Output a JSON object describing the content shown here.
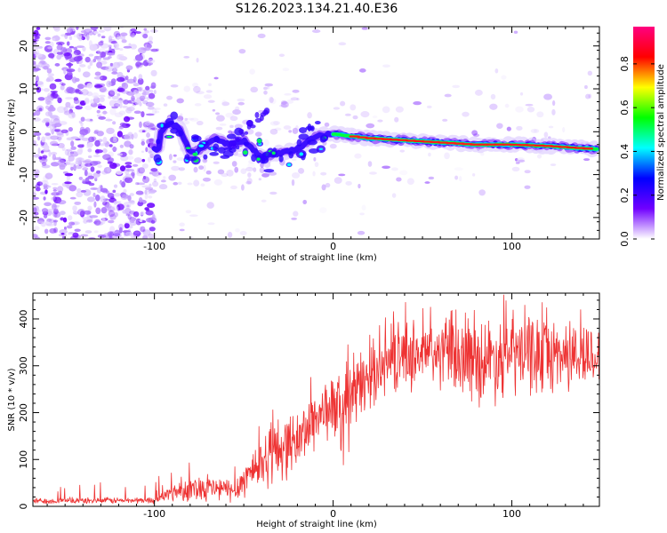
{
  "title": "S126.2023.134.21.40.E36",
  "chart_data": [
    {
      "type": "heatmap",
      "xlabel": "Height of straight line (km)",
      "ylabel": "Frequency (Hz)",
      "xlim": [
        -168,
        149
      ],
      "ylim": [
        -25,
        24.5
      ],
      "xticks": [
        "-100",
        "0",
        "100"
      ],
      "yticks": [
        "-20",
        "-10",
        "0",
        "10",
        "20"
      ],
      "colorbar": {
        "label": "Normalized spectral amplitude",
        "range": [
          0,
          0.97
        ],
        "ticks": [
          "0.0",
          "0.2",
          "0.4",
          "0.6",
          "0.8"
        ],
        "colormap": [
          "#ffffff",
          "#7000ff",
          "#0000ff",
          "#00ffff",
          "#00ff00",
          "#ffff00",
          "#ff0000",
          "#ff0080"
        ]
      },
      "ridge": [
        {
          "x": -97,
          "y": -0.5
        },
        {
          "x": -92,
          "y": 2
        },
        {
          "x": -86,
          "y": 1
        },
        {
          "x": -80,
          "y": -5
        },
        {
          "x": -74,
          "y": -4
        },
        {
          "x": -66,
          "y": -1.5
        },
        {
          "x": -58,
          "y": -3
        },
        {
          "x": -50,
          "y": -2
        },
        {
          "x": -40,
          "y": -6
        },
        {
          "x": -30,
          "y": -5
        },
        {
          "x": -20,
          "y": -4
        },
        {
          "x": -10,
          "y": -1
        },
        {
          "x": 0,
          "y": -0.5
        },
        {
          "x": 10,
          "y": -1
        },
        {
          "x": 20,
          "y": -1.5
        },
        {
          "x": 40,
          "y": -2
        },
        {
          "x": 60,
          "y": -2.5
        },
        {
          "x": 80,
          "y": -3
        },
        {
          "x": 100,
          "y": -3
        },
        {
          "x": 120,
          "y": -3.3
        },
        {
          "x": 145,
          "y": -4
        }
      ]
    },
    {
      "type": "line",
      "xlabel": "Height of straight line (km)",
      "ylabel": "SNR (10 * v/v)",
      "xlim": [
        -168,
        149
      ],
      "ylim": [
        0,
        455
      ],
      "xticks": [
        "-100",
        "0",
        "100"
      ],
      "yticks": [
        "0",
        "100",
        "200",
        "300",
        "400"
      ],
      "color": "#ee3333",
      "envelope": [
        {
          "x": -168,
          "low": 5,
          "high": 18
        },
        {
          "x": -100,
          "low": 6,
          "high": 20
        },
        {
          "x": -90,
          "low": 10,
          "high": 50
        },
        {
          "x": -75,
          "low": 12,
          "high": 70
        },
        {
          "x": -55,
          "low": 8,
          "high": 60
        },
        {
          "x": -45,
          "low": 30,
          "high": 130
        },
        {
          "x": -30,
          "low": 50,
          "high": 200
        },
        {
          "x": -20,
          "low": 80,
          "high": 200
        },
        {
          "x": -10,
          "low": 120,
          "high": 260
        },
        {
          "x": 0,
          "low": 150,
          "high": 280
        },
        {
          "x": 5,
          "low": 80,
          "high": 300
        },
        {
          "x": 15,
          "low": 180,
          "high": 330
        },
        {
          "x": 25,
          "low": 230,
          "high": 360
        },
        {
          "x": 40,
          "low": 250,
          "high": 400
        },
        {
          "x": 60,
          "low": 250,
          "high": 400
        },
        {
          "x": 80,
          "low": 220,
          "high": 400
        },
        {
          "x": 100,
          "low": 230,
          "high": 420
        },
        {
          "x": 120,
          "low": 240,
          "high": 410
        },
        {
          "x": 149,
          "low": 250,
          "high": 390
        }
      ]
    }
  ]
}
